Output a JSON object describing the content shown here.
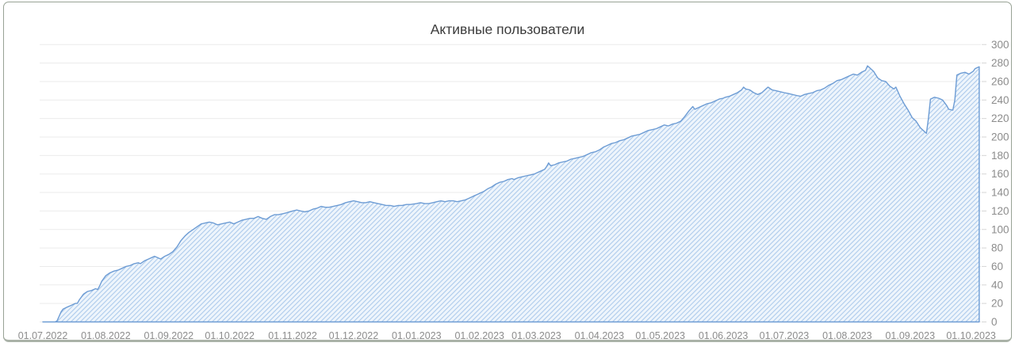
{
  "card": {
    "title": "Активные пользователи"
  },
  "chart_data": {
    "type": "area",
    "title": "Активные пользователи",
    "grid": "horizontal",
    "legend": "none",
    "y_axis_position": "right",
    "ylim": [
      0,
      300
    ],
    "y_ticks": [
      0,
      20,
      40,
      60,
      80,
      100,
      120,
      140,
      160,
      180,
      200,
      220,
      240,
      260,
      280,
      300
    ],
    "x_unit": "days since 01.07.2022",
    "x_ticks": [
      {
        "label": "01.07.2022",
        "day": 0
      },
      {
        "label": "01.08.2022",
        "day": 31
      },
      {
        "label": "01.09.2022",
        "day": 62
      },
      {
        "label": "01.10.2022",
        "day": 92
      },
      {
        "label": "01.11.2022",
        "day": 123
      },
      {
        "label": "01.12.2022",
        "day": 153
      },
      {
        "label": "01.01.2023",
        "day": 184
      },
      {
        "label": "01.02.2023",
        "day": 215
      },
      {
        "label": "01.03.2023",
        "day": 243
      },
      {
        "label": "01.04.2023",
        "day": 274
      },
      {
        "label": "01.05.2023",
        "day": 304
      },
      {
        "label": "01.06.2023",
        "day": 335
      },
      {
        "label": "01.07.2023",
        "day": 365
      },
      {
        "label": "01.08.2023",
        "day": 396
      },
      {
        "label": "01.09.2023",
        "day": 427
      },
      {
        "label": "01.10.2023",
        "day": 457
      }
    ],
    "colors": {
      "line": "#6d9cd4",
      "hatch_line": "#abc9eb",
      "hatch_bg": "#eef5fc",
      "gridline": "#ebebeb",
      "tick": "#d6d6d6",
      "label": "#8c8c8c",
      "title": "#3c3c3c"
    },
    "series": [
      {
        "name": "Активные пользователи",
        "points": [
          [
            0,
            0
          ],
          [
            3,
            0
          ],
          [
            6,
            0
          ],
          [
            7,
            1
          ],
          [
            8,
            6
          ],
          [
            9,
            11
          ],
          [
            10,
            14
          ],
          [
            12,
            16
          ],
          [
            14,
            18
          ],
          [
            16,
            20
          ],
          [
            17,
            20
          ],
          [
            18,
            24
          ],
          [
            20,
            30
          ],
          [
            22,
            33
          ],
          [
            24,
            34
          ],
          [
            26,
            36
          ],
          [
            27,
            35
          ],
          [
            28,
            39
          ],
          [
            29,
            44
          ],
          [
            30,
            47
          ],
          [
            31,
            50
          ],
          [
            33,
            53
          ],
          [
            35,
            55
          ],
          [
            37,
            56
          ],
          [
            39,
            58
          ],
          [
            41,
            60
          ],
          [
            43,
            61
          ],
          [
            45,
            63
          ],
          [
            47,
            64
          ],
          [
            48,
            63
          ],
          [
            50,
            66
          ],
          [
            52,
            68
          ],
          [
            54,
            70
          ],
          [
            55,
            71
          ],
          [
            57,
            69
          ],
          [
            58,
            68
          ],
          [
            60,
            71
          ],
          [
            62,
            73
          ],
          [
            64,
            76
          ],
          [
            66,
            81
          ],
          [
            68,
            88
          ],
          [
            70,
            93
          ],
          [
            72,
            97
          ],
          [
            74,
            100
          ],
          [
            76,
            103
          ],
          [
            78,
            106
          ],
          [
            80,
            107
          ],
          [
            82,
            108
          ],
          [
            84,
            107
          ],
          [
            86,
            105
          ],
          [
            88,
            106
          ],
          [
            90,
            107
          ],
          [
            92,
            108
          ],
          [
            94,
            106
          ],
          [
            96,
            108
          ],
          [
            98,
            110
          ],
          [
            100,
            111
          ],
          [
            102,
            112
          ],
          [
            104,
            112
          ],
          [
            106,
            114
          ],
          [
            108,
            112
          ],
          [
            110,
            111
          ],
          [
            112,
            114
          ],
          [
            114,
            116
          ],
          [
            116,
            116
          ],
          [
            118,
            117
          ],
          [
            120,
            118
          ],
          [
            123,
            120
          ],
          [
            125,
            121
          ],
          [
            127,
            120
          ],
          [
            129,
            119
          ],
          [
            131,
            120
          ],
          [
            133,
            122
          ],
          [
            135,
            123
          ],
          [
            137,
            125
          ],
          [
            139,
            124
          ],
          [
            141,
            124
          ],
          [
            143,
            125
          ],
          [
            145,
            126
          ],
          [
            147,
            127
          ],
          [
            149,
            129
          ],
          [
            151,
            130
          ],
          [
            153,
            131
          ],
          [
            155,
            130
          ],
          [
            157,
            129
          ],
          [
            159,
            129
          ],
          [
            161,
            130
          ],
          [
            163,
            129
          ],
          [
            165,
            128
          ],
          [
            167,
            127
          ],
          [
            169,
            126
          ],
          [
            171,
            126
          ],
          [
            173,
            125
          ],
          [
            175,
            126
          ],
          [
            177,
            126
          ],
          [
            179,
            127
          ],
          [
            181,
            127
          ],
          [
            184,
            128
          ],
          [
            186,
            129
          ],
          [
            188,
            128
          ],
          [
            190,
            128
          ],
          [
            192,
            129
          ],
          [
            194,
            130
          ],
          [
            196,
            131
          ],
          [
            198,
            130
          ],
          [
            200,
            131
          ],
          [
            202,
            131
          ],
          [
            204,
            130
          ],
          [
            206,
            131
          ],
          [
            208,
            132
          ],
          [
            210,
            134
          ],
          [
            212,
            136
          ],
          [
            214,
            138
          ],
          [
            215,
            139
          ],
          [
            217,
            141
          ],
          [
            219,
            144
          ],
          [
            221,
            146
          ],
          [
            223,
            149
          ],
          [
            225,
            151
          ],
          [
            227,
            152
          ],
          [
            229,
            154
          ],
          [
            231,
            155
          ],
          [
            232,
            154
          ],
          [
            234,
            156
          ],
          [
            236,
            157
          ],
          [
            238,
            158
          ],
          [
            240,
            159
          ],
          [
            242,
            160
          ],
          [
            243,
            161
          ],
          [
            245,
            163
          ],
          [
            247,
            165
          ],
          [
            248,
            168
          ],
          [
            249,
            172
          ],
          [
            250,
            169
          ],
          [
            252,
            170
          ],
          [
            254,
            172
          ],
          [
            256,
            173
          ],
          [
            258,
            174
          ],
          [
            260,
            176
          ],
          [
            262,
            177
          ],
          [
            264,
            178
          ],
          [
            266,
            179
          ],
          [
            268,
            181
          ],
          [
            270,
            183
          ],
          [
            272,
            184
          ],
          [
            274,
            186
          ],
          [
            276,
            189
          ],
          [
            278,
            191
          ],
          [
            280,
            193
          ],
          [
            282,
            194
          ],
          [
            284,
            196
          ],
          [
            286,
            197
          ],
          [
            288,
            199
          ],
          [
            290,
            201
          ],
          [
            292,
            202
          ],
          [
            294,
            203
          ],
          [
            296,
            205
          ],
          [
            298,
            207
          ],
          [
            300,
            208
          ],
          [
            302,
            209
          ],
          [
            304,
            211
          ],
          [
            306,
            213
          ],
          [
            308,
            212
          ],
          [
            310,
            214
          ],
          [
            312,
            215
          ],
          [
            314,
            217
          ],
          [
            316,
            222
          ],
          [
            318,
            228
          ],
          [
            320,
            233
          ],
          [
            321,
            230
          ],
          [
            323,
            232
          ],
          [
            325,
            234
          ],
          [
            327,
            236
          ],
          [
            329,
            237
          ],
          [
            331,
            239
          ],
          [
            333,
            241
          ],
          [
            335,
            242
          ],
          [
            336,
            243
          ],
          [
            338,
            244
          ],
          [
            340,
            246
          ],
          [
            342,
            248
          ],
          [
            344,
            251
          ],
          [
            345,
            254
          ],
          [
            346,
            252
          ],
          [
            348,
            251
          ],
          [
            350,
            248
          ],
          [
            352,
            246
          ],
          [
            354,
            248
          ],
          [
            356,
            252
          ],
          [
            357,
            254
          ],
          [
            359,
            251
          ],
          [
            361,
            250
          ],
          [
            363,
            249
          ],
          [
            365,
            248
          ],
          [
            367,
            247
          ],
          [
            369,
            246
          ],
          [
            371,
            245
          ],
          [
            373,
            244
          ],
          [
            375,
            246
          ],
          [
            377,
            247
          ],
          [
            379,
            248
          ],
          [
            381,
            250
          ],
          [
            383,
            251
          ],
          [
            385,
            253
          ],
          [
            387,
            256
          ],
          [
            389,
            258
          ],
          [
            391,
            261
          ],
          [
            393,
            262
          ],
          [
            395,
            264
          ],
          [
            397,
            266
          ],
          [
            399,
            268
          ],
          [
            401,
            267
          ],
          [
            403,
            270
          ],
          [
            405,
            272
          ],
          [
            406,
            277
          ],
          [
            407,
            275
          ],
          [
            409,
            271
          ],
          [
            411,
            264
          ],
          [
            413,
            261
          ],
          [
            415,
            260
          ],
          [
            417,
            255
          ],
          [
            419,
            252
          ],
          [
            420,
            254
          ],
          [
            422,
            244
          ],
          [
            424,
            236
          ],
          [
            426,
            229
          ],
          [
            428,
            221
          ],
          [
            430,
            217
          ],
          [
            432,
            210
          ],
          [
            434,
            206
          ],
          [
            435,
            204
          ],
          [
            436,
            220
          ],
          [
            437,
            241
          ],
          [
            439,
            243
          ],
          [
            441,
            242
          ],
          [
            443,
            240
          ],
          [
            445,
            234
          ],
          [
            446,
            230
          ],
          [
            448,
            229
          ],
          [
            449,
            240
          ],
          [
            450,
            267
          ],
          [
            452,
            269
          ],
          [
            454,
            270
          ],
          [
            456,
            268
          ],
          [
            458,
            271
          ],
          [
            459,
            274
          ],
          [
            461,
            276
          ]
        ]
      }
    ]
  }
}
